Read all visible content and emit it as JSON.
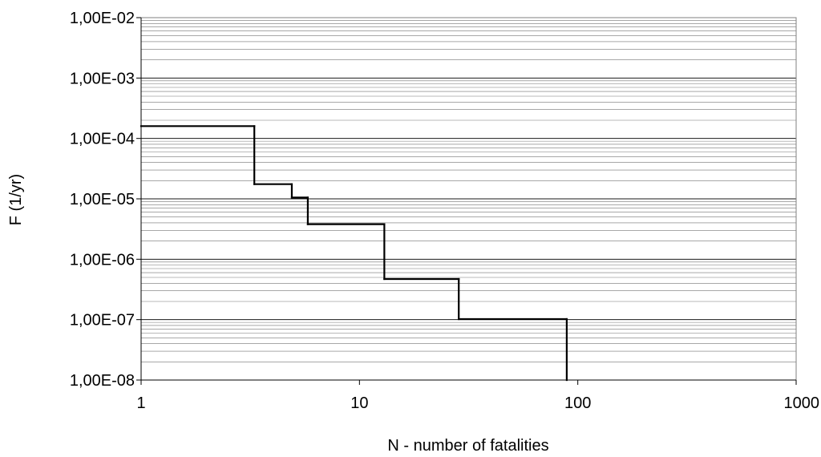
{
  "chart_data": {
    "type": "line",
    "title": "",
    "xlabel": "N - number of fatalities",
    "ylabel": "F (1/yr)",
    "xscale": "log",
    "yscale": "log",
    "xlim": [
      1,
      1000
    ],
    "ylim": [
      1e-08,
      0.01
    ],
    "grid": {
      "major_y": true,
      "minor_y": true,
      "x": false
    },
    "legend": "none",
    "x_ticks": [
      {
        "value": 1,
        "label": "1"
      },
      {
        "value": 10,
        "label": "10"
      },
      {
        "value": 100,
        "label": "100"
      },
      {
        "value": 1000,
        "label": "1000"
      }
    ],
    "y_ticks": [
      {
        "value": 1e-08,
        "label": "1,00E-08"
      },
      {
        "value": 1e-07,
        "label": "1,00E-07"
      },
      {
        "value": 1e-06,
        "label": "1,00E-06"
      },
      {
        "value": 1e-05,
        "label": "1,00E-05"
      },
      {
        "value": 0.0001,
        "label": "1,00E-04"
      },
      {
        "value": 0.001,
        "label": "1,00E-03"
      },
      {
        "value": 0.01,
        "label": "1,00E-02"
      }
    ],
    "series": [
      {
        "color": "#000000",
        "step": true,
        "points": [
          {
            "x": 1,
            "y": 0.00016
          },
          {
            "x": 3.3,
            "y": 0.00016
          },
          {
            "x": 3.3,
            "y": 1.75e-05
          },
          {
            "x": 4.9,
            "y": 1.75e-05
          },
          {
            "x": 4.9,
            "y": 1.05e-05
          },
          {
            "x": 5.8,
            "y": 1.05e-05
          },
          {
            "x": 5.8,
            "y": 3.8e-06
          },
          {
            "x": 13,
            "y": 3.8e-06
          },
          {
            "x": 13,
            "y": 4.7e-07
          },
          {
            "x": 28.5,
            "y": 4.7e-07
          },
          {
            "x": 28.5,
            "y": 1.02e-07
          },
          {
            "x": 89,
            "y": 1.02e-07
          },
          {
            "x": 89,
            "y": 1e-08
          }
        ]
      }
    ]
  }
}
